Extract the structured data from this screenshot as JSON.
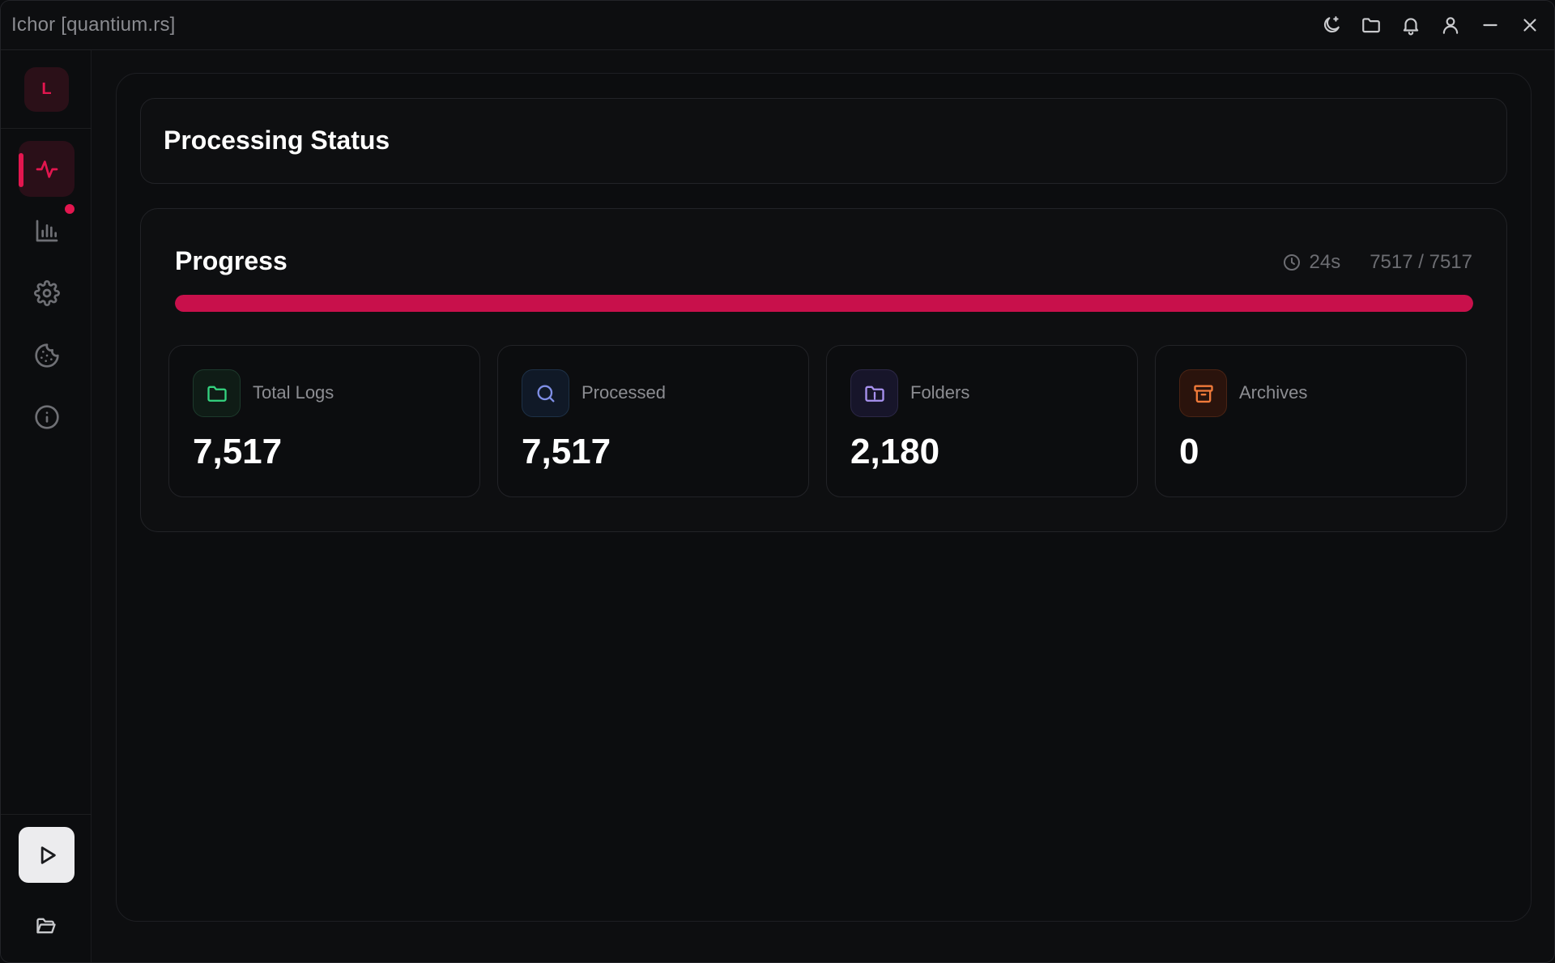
{
  "window": {
    "title": "Ichor [quantium.rs]"
  },
  "titlebar_icons": [
    "theme-toggle-icon",
    "folder-icon",
    "bell-icon",
    "user-icon",
    "minimize-icon",
    "close-icon"
  ],
  "sidebar": {
    "avatar_letter": "L",
    "items": [
      {
        "name": "activity",
        "icon": "activity-icon",
        "active": true
      },
      {
        "name": "stats",
        "icon": "bar-chart-icon",
        "active": false
      },
      {
        "name": "settings",
        "icon": "gear-icon",
        "active": false
      },
      {
        "name": "cookies",
        "icon": "cookie-icon",
        "active": false
      },
      {
        "name": "info",
        "icon": "info-icon",
        "active": false
      }
    ],
    "accent": "#e3164f"
  },
  "main": {
    "page_title": "Processing Status",
    "progress": {
      "title": "Progress",
      "elapsed": "24s",
      "count": "7517 / 7517",
      "fraction": 1.0,
      "bar_color": "#c8104b"
    },
    "stats": [
      {
        "label": "Total Logs",
        "value": "7,517",
        "icon": "folder-icon",
        "color": "#34d37f"
      },
      {
        "label": "Processed",
        "value": "7,517",
        "icon": "search-icon",
        "color": "#7f8fe6"
      },
      {
        "label": "Folders",
        "value": "2,180",
        "icon": "folder-lock-icon",
        "color": "#a892f0"
      },
      {
        "label": "Archives",
        "value": "0",
        "icon": "archive-icon",
        "color": "#f07a3a"
      }
    ]
  }
}
